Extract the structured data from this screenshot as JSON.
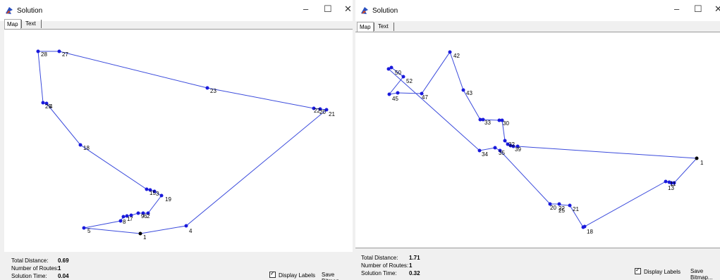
{
  "windows": [
    {
      "title": "Solution",
      "controls": {
        "minimize": "–",
        "maximize": "☐",
        "close": "✕"
      },
      "tabs": [
        "Map",
        "Text"
      ],
      "stats": {
        "total_distance_label": "Total Distance:",
        "total_distance": "0.69",
        "num_routes_label": "Number of Routes:",
        "num_routes": "1",
        "solution_time_label": "Solution Time:",
        "solution_time": "0.04"
      },
      "display_labels": "Display Labels",
      "save_bitmap": "Save Bitmap...",
      "route_color": "#3b4bdc",
      "node_color": "#1a1adc",
      "depot_color": "#000000"
    },
    {
      "title": "Solution",
      "controls": {
        "minimize": "–",
        "maximize": "☐",
        "close": "✕"
      },
      "tabs": [
        "Map",
        "Text"
      ],
      "stats": {
        "total_distance_label": "Total Distance:",
        "total_distance": "1.71",
        "num_routes_label": "Number of Routes:",
        "num_routes": "1",
        "solution_time_label": "Solution Time:",
        "solution_time": "0.32"
      },
      "display_labels": "Display Labels",
      "save_bitmap": "Save Bitmap...",
      "route_color": "#3b4bdc",
      "node_color": "#1a1adc",
      "depot_color": "#000000"
    }
  ]
}
